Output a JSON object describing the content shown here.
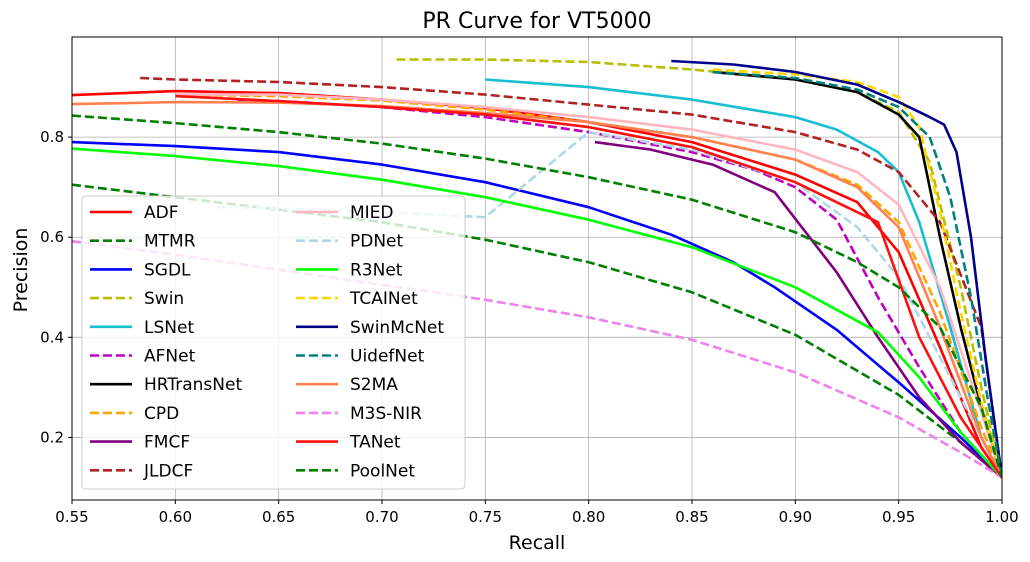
{
  "chart_data": {
    "type": "line",
    "title": "PR Curve for VT5000",
    "xlabel": "Recall",
    "ylabel": "Precision",
    "xlim": [
      0.55,
      1.0
    ],
    "ylim": [
      0.075,
      1.0
    ],
    "xticks": [
      "0.55",
      "0.60",
      "0.65",
      "0.70",
      "0.75",
      "0.80",
      "0.85",
      "0.90",
      "0.95",
      "1.00"
    ],
    "xtick_values": [
      0.55,
      0.6,
      0.65,
      0.7,
      0.75,
      0.8,
      0.85,
      0.9,
      0.95,
      1.0
    ],
    "yticks": [
      "0.2",
      "0.4",
      "0.6",
      "0.8"
    ],
    "ytick_values": [
      0.2,
      0.4,
      0.6,
      0.8
    ],
    "grid": true,
    "legend_position": "lower-left",
    "legend_columns": 2,
    "series": [
      {
        "name": "ADF",
        "color": "#ff0000",
        "dash": "solid",
        "points": [
          [
            0.55,
            0.884
          ],
          [
            0.6,
            0.892
          ],
          [
            0.65,
            0.888
          ],
          [
            0.7,
            0.875
          ],
          [
            0.75,
            0.858
          ],
          [
            0.8,
            0.83
          ],
          [
            0.85,
            0.79
          ],
          [
            0.9,
            0.725
          ],
          [
            0.93,
            0.67
          ],
          [
            0.95,
            0.57
          ],
          [
            0.97,
            0.38
          ],
          [
            0.99,
            0.18
          ],
          [
            1.0,
            0.12
          ]
        ]
      },
      {
        "name": "MTMR",
        "color": "#008000",
        "dash": "dashed",
        "points": [
          [
            0.55,
            0.705
          ],
          [
            0.6,
            0.68
          ],
          [
            0.65,
            0.655
          ],
          [
            0.7,
            0.63
          ],
          [
            0.75,
            0.595
          ],
          [
            0.8,
            0.55
          ],
          [
            0.85,
            0.49
          ],
          [
            0.9,
            0.405
          ],
          [
            0.95,
            0.285
          ],
          [
            0.98,
            0.19
          ],
          [
            1.0,
            0.12
          ]
        ]
      },
      {
        "name": "SGDL",
        "color": "#0000ff",
        "dash": "solid",
        "points": [
          [
            0.55,
            0.79
          ],
          [
            0.6,
            0.782
          ],
          [
            0.65,
            0.77
          ],
          [
            0.7,
            0.745
          ],
          [
            0.75,
            0.71
          ],
          [
            0.8,
            0.66
          ],
          [
            0.84,
            0.605
          ],
          [
            0.87,
            0.55
          ],
          [
            0.89,
            0.5
          ],
          [
            0.92,
            0.415
          ],
          [
            0.95,
            0.31
          ],
          [
            0.98,
            0.2
          ],
          [
            1.0,
            0.12
          ]
        ]
      },
      {
        "name": "Swin",
        "color": "#bcbd00",
        "dash": "dashed",
        "points": [
          [
            0.707,
            0.955
          ],
          [
            0.75,
            0.955
          ],
          [
            0.8,
            0.95
          ],
          [
            0.85,
            0.935
          ],
          [
            0.9,
            0.915
          ],
          [
            0.93,
            0.89
          ],
          [
            0.95,
            0.85
          ],
          [
            0.965,
            0.75
          ],
          [
            0.98,
            0.5
          ],
          [
            0.99,
            0.3
          ],
          [
            1.0,
            0.12
          ]
        ]
      },
      {
        "name": "LSNet",
        "color": "#17becf",
        "dash": "solid",
        "points": [
          [
            0.75,
            0.915
          ],
          [
            0.8,
            0.9
          ],
          [
            0.85,
            0.875
          ],
          [
            0.9,
            0.84
          ],
          [
            0.92,
            0.815
          ],
          [
            0.94,
            0.77
          ],
          [
            0.95,
            0.73
          ],
          [
            0.96,
            0.63
          ],
          [
            0.975,
            0.42
          ],
          [
            0.99,
            0.2
          ],
          [
            1.0,
            0.12
          ]
        ]
      },
      {
        "name": "AFNet",
        "color": "#c000c0",
        "dash": "dashed",
        "points": [
          [
            0.63,
            0.875
          ],
          [
            0.65,
            0.872
          ],
          [
            0.7,
            0.86
          ],
          [
            0.75,
            0.84
          ],
          [
            0.8,
            0.81
          ],
          [
            0.85,
            0.77
          ],
          [
            0.88,
            0.735
          ],
          [
            0.9,
            0.7
          ],
          [
            0.92,
            0.635
          ],
          [
            0.94,
            0.48
          ],
          [
            0.96,
            0.34
          ],
          [
            0.98,
            0.21
          ],
          [
            1.0,
            0.12
          ]
        ]
      },
      {
        "name": "HRTransNet",
        "color": "#000000",
        "dash": "solid",
        "points": [
          [
            0.86,
            0.93
          ],
          [
            0.9,
            0.915
          ],
          [
            0.93,
            0.89
          ],
          [
            0.95,
            0.845
          ],
          [
            0.96,
            0.8
          ],
          [
            0.97,
            0.6
          ],
          [
            0.98,
            0.42
          ],
          [
            0.99,
            0.26
          ],
          [
            1.0,
            0.12
          ]
        ]
      },
      {
        "name": "CPD",
        "color": "#ffa500",
        "dash": "dashed",
        "points": [
          [
            0.6,
            0.885
          ],
          [
            0.65,
            0.882
          ],
          [
            0.7,
            0.873
          ],
          [
            0.75,
            0.855
          ],
          [
            0.8,
            0.83
          ],
          [
            0.85,
            0.8
          ],
          [
            0.9,
            0.755
          ],
          [
            0.93,
            0.705
          ],
          [
            0.95,
            0.63
          ],
          [
            0.97,
            0.45
          ],
          [
            0.99,
            0.22
          ],
          [
            1.0,
            0.12
          ]
        ]
      },
      {
        "name": "FMCF",
        "color": "#800080",
        "dash": "solid",
        "points": [
          [
            0.803,
            0.79
          ],
          [
            0.83,
            0.775
          ],
          [
            0.86,
            0.745
          ],
          [
            0.89,
            0.69
          ],
          [
            0.92,
            0.53
          ],
          [
            0.94,
            0.4
          ],
          [
            0.96,
            0.28
          ],
          [
            0.98,
            0.19
          ],
          [
            1.0,
            0.12
          ]
        ]
      },
      {
        "name": "JLDCF",
        "color": "#b22222",
        "dash": "dashed",
        "points": [
          [
            0.583,
            0.918
          ],
          [
            0.6,
            0.915
          ],
          [
            0.65,
            0.91
          ],
          [
            0.7,
            0.9
          ],
          [
            0.75,
            0.885
          ],
          [
            0.8,
            0.865
          ],
          [
            0.85,
            0.845
          ],
          [
            0.9,
            0.81
          ],
          [
            0.93,
            0.775
          ],
          [
            0.95,
            0.73
          ],
          [
            0.97,
            0.63
          ],
          [
            0.99,
            0.42
          ],
          [
            1.0,
            0.12
          ]
        ]
      },
      {
        "name": "MIED",
        "color": "#ffb6c1",
        "dash": "solid",
        "points": [
          [
            0.6,
            0.885
          ],
          [
            0.65,
            0.885
          ],
          [
            0.7,
            0.875
          ],
          [
            0.75,
            0.86
          ],
          [
            0.8,
            0.84
          ],
          [
            0.85,
            0.815
          ],
          [
            0.9,
            0.775
          ],
          [
            0.93,
            0.73
          ],
          [
            0.95,
            0.665
          ],
          [
            0.97,
            0.5
          ],
          [
            0.99,
            0.25
          ],
          [
            1.0,
            0.12
          ]
        ]
      },
      {
        "name": "PDNet",
        "color": "#add8e6",
        "dash": "dashed",
        "points": [
          [
            0.62,
            0.66
          ],
          [
            0.65,
            0.658
          ],
          [
            0.7,
            0.65
          ],
          [
            0.75,
            0.64
          ],
          [
            0.8,
            0.81
          ],
          [
            0.85,
            0.775
          ],
          [
            0.9,
            0.71
          ],
          [
            0.93,
            0.62
          ],
          [
            0.95,
            0.52
          ],
          [
            0.97,
            0.36
          ],
          [
            0.99,
            0.2
          ],
          [
            1.0,
            0.12
          ]
        ]
      },
      {
        "name": "R3Net",
        "color": "#00ff00",
        "dash": "solid",
        "points": [
          [
            0.55,
            0.777
          ],
          [
            0.6,
            0.762
          ],
          [
            0.65,
            0.742
          ],
          [
            0.7,
            0.715
          ],
          [
            0.75,
            0.68
          ],
          [
            0.8,
            0.635
          ],
          [
            0.85,
            0.58
          ],
          [
            0.9,
            0.5
          ],
          [
            0.94,
            0.41
          ],
          [
            0.96,
            0.32
          ],
          [
            0.98,
            0.21
          ],
          [
            1.0,
            0.12
          ]
        ]
      },
      {
        "name": "TCAINet",
        "color": "#ffd700",
        "dash": "dashed",
        "points": [
          [
            0.86,
            0.935
          ],
          [
            0.9,
            0.925
          ],
          [
            0.93,
            0.91
          ],
          [
            0.95,
            0.88
          ],
          [
            0.96,
            0.82
          ],
          [
            0.97,
            0.65
          ],
          [
            0.98,
            0.45
          ],
          [
            0.99,
            0.27
          ],
          [
            1.0,
            0.12
          ]
        ]
      },
      {
        "name": "SwinMcNet",
        "color": "#00008b",
        "dash": "solid",
        "points": [
          [
            0.84,
            0.952
          ],
          [
            0.87,
            0.945
          ],
          [
            0.9,
            0.93
          ],
          [
            0.93,
            0.905
          ],
          [
            0.95,
            0.87
          ],
          [
            0.965,
            0.84
          ],
          [
            0.972,
            0.825
          ],
          [
            0.978,
            0.77
          ],
          [
            0.985,
            0.6
          ],
          [
            0.992,
            0.36
          ],
          [
            1.0,
            0.12
          ]
        ]
      },
      {
        "name": "UidefNet",
        "color": "#008080",
        "dash": "dashed",
        "points": [
          [
            0.86,
            0.93
          ],
          [
            0.9,
            0.918
          ],
          [
            0.93,
            0.895
          ],
          [
            0.95,
            0.86
          ],
          [
            0.965,
            0.8
          ],
          [
            0.975,
            0.68
          ],
          [
            0.985,
            0.48
          ],
          [
            0.993,
            0.28
          ],
          [
            1.0,
            0.12
          ]
        ]
      },
      {
        "name": "S2MA",
        "color": "#ff8050",
        "dash": "solid",
        "points": [
          [
            0.55,
            0.866
          ],
          [
            0.6,
            0.87
          ],
          [
            0.65,
            0.869
          ],
          [
            0.7,
            0.862
          ],
          [
            0.75,
            0.848
          ],
          [
            0.8,
            0.83
          ],
          [
            0.85,
            0.8
          ],
          [
            0.9,
            0.755
          ],
          [
            0.93,
            0.7
          ],
          [
            0.95,
            0.62
          ],
          [
            0.97,
            0.42
          ],
          [
            0.99,
            0.2
          ],
          [
            1.0,
            0.12
          ]
        ]
      },
      {
        "name": "M3S-NIR",
        "color": "#ee82ee",
        "dash": "dashed",
        "points": [
          [
            0.55,
            0.592
          ],
          [
            0.6,
            0.565
          ],
          [
            0.65,
            0.535
          ],
          [
            0.7,
            0.505
          ],
          [
            0.75,
            0.475
          ],
          [
            0.8,
            0.44
          ],
          [
            0.85,
            0.395
          ],
          [
            0.9,
            0.33
          ],
          [
            0.95,
            0.24
          ],
          [
            0.98,
            0.17
          ],
          [
            1.0,
            0.12
          ]
        ]
      },
      {
        "name": "TANet",
        "color": "#ff1010",
        "dash": "solid",
        "points": [
          [
            0.6,
            0.882
          ],
          [
            0.65,
            0.872
          ],
          [
            0.7,
            0.86
          ],
          [
            0.75,
            0.845
          ],
          [
            0.8,
            0.82
          ],
          [
            0.85,
            0.78
          ],
          [
            0.9,
            0.71
          ],
          [
            0.94,
            0.63
          ],
          [
            0.96,
            0.4
          ],
          [
            0.98,
            0.24
          ],
          [
            1.0,
            0.12
          ]
        ]
      },
      {
        "name": "PoolNet",
        "color": "#008000",
        "dash": "dashed",
        "points": [
          [
            0.55,
            0.843
          ],
          [
            0.6,
            0.828
          ],
          [
            0.65,
            0.81
          ],
          [
            0.7,
            0.787
          ],
          [
            0.75,
            0.757
          ],
          [
            0.8,
            0.72
          ],
          [
            0.85,
            0.675
          ],
          [
            0.9,
            0.61
          ],
          [
            0.93,
            0.55
          ],
          [
            0.95,
            0.5
          ],
          [
            0.97,
            0.42
          ],
          [
            0.99,
            0.26
          ],
          [
            1.0,
            0.12
          ]
        ]
      }
    ]
  }
}
